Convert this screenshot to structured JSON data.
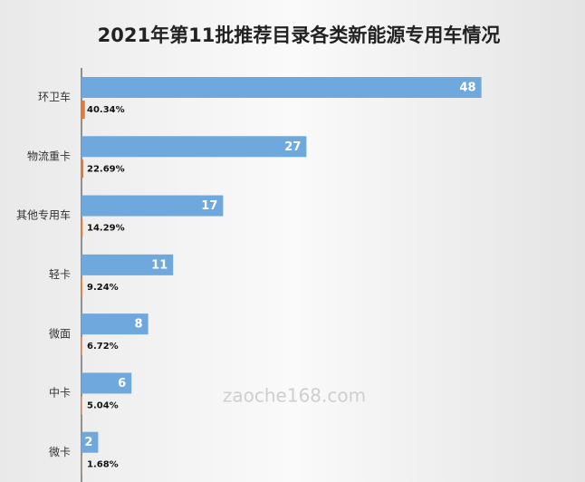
{
  "chart_data": {
    "type": "bar",
    "orientation": "horizontal",
    "title": "2021年第11批推荐目录各类新能源专用车情况",
    "categories": [
      "环卫车",
      "物流重卡",
      "其他专用车",
      "轻卡",
      "微面",
      "中卡",
      "微卡"
    ],
    "series": [
      {
        "color": "#6fa8dc",
        "values": [
          48,
          27,
          17,
          11,
          8,
          6,
          2
        ]
      },
      {
        "color": "#e07b39",
        "values": [
          0.4034,
          0.2269,
          0.1429,
          0.0924,
          0.0672,
          0.0504,
          0.0168
        ],
        "value_labels": [
          "40.34%",
          "22.69%",
          "14.29%",
          "9.24%",
          "6.72%",
          "5.04%",
          "1.68%"
        ]
      }
    ],
    "xlim": [
      0,
      55
    ],
    "watermark": "zaoche168.com"
  }
}
